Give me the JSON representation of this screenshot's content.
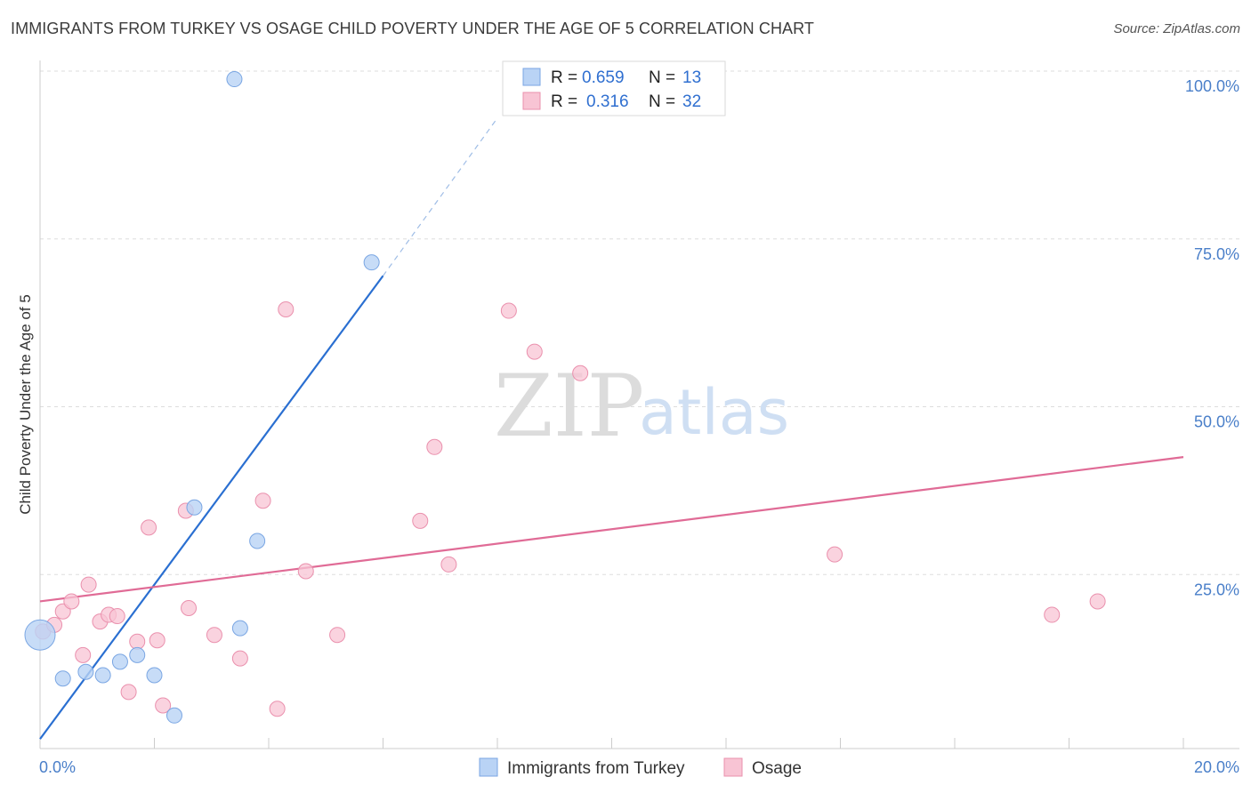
{
  "title": "IMMIGRANTS FROM TURKEY VS OSAGE CHILD POVERTY UNDER THE AGE OF 5 CORRELATION CHART",
  "source": "Source: ZipAtlas.com",
  "watermark": {
    "zip": "ZIP",
    "atlas": "atlas"
  },
  "colors": {
    "turkey_fill": "#b9d3f5",
    "turkey_stroke": "#7aa6e3",
    "turkey_line": "#2a6fd1",
    "osage_fill": "#f8c4d4",
    "osage_stroke": "#ea90ad",
    "osage_line": "#e06b96",
    "grid": "#dddddd",
    "tick_label": "#4a7fc9"
  },
  "legend": {
    "rows": [
      {
        "r_label": "R =",
        "r_value": "0.659",
        "n_label": "N =",
        "n_value": "13"
      },
      {
        "r_label": "R =",
        "r_value": "0.316",
        "n_label": "N =",
        "n_value": "32"
      }
    ]
  },
  "chart_data": {
    "type": "scatter",
    "title": "IMMIGRANTS FROM TURKEY VS OSAGE CHILD POVERTY UNDER THE AGE OF 5 CORRELATION CHART",
    "xlabel": "",
    "ylabel": "Child Poverty Under the Age of 5",
    "xlim": [
      0,
      20
    ],
    "ylim": [
      0,
      100
    ],
    "x_tick_labels": [
      "0.0%",
      "20.0%"
    ],
    "y_ticks": [
      25,
      50,
      75,
      100
    ],
    "y_tick_labels": [
      "25.0%",
      "50.0%",
      "75.0%",
      "100.0%"
    ],
    "grid": true,
    "legend_position": "top-center",
    "series": [
      {
        "name": "Immigrants from Turkey",
        "r": 0.659,
        "n": 13,
        "points": [
          {
            "x": 0.0,
            "y": 16.0,
            "size": "large"
          },
          {
            "x": 0.4,
            "y": 9.5
          },
          {
            "x": 0.8,
            "y": 10.5
          },
          {
            "x": 1.1,
            "y": 10.0
          },
          {
            "x": 1.4,
            "y": 12.0
          },
          {
            "x": 1.7,
            "y": 13.0
          },
          {
            "x": 2.0,
            "y": 10.0
          },
          {
            "x": 2.35,
            "y": 4.0
          },
          {
            "x": 2.7,
            "y": 35.0
          },
          {
            "x": 3.4,
            "y": 98.8
          },
          {
            "x": 3.5,
            "y": 17.0
          },
          {
            "x": 3.8,
            "y": 30.0
          },
          {
            "x": 5.8,
            "y": 71.5
          }
        ],
        "trend": {
          "x0": 0.0,
          "y0": 0.5,
          "x1": 6.0,
          "y1": 69.5,
          "dashed_to_x": 8.0,
          "dashed_to_y": 93.0
        }
      },
      {
        "name": "Osage",
        "r": 0.316,
        "n": 32,
        "points": [
          {
            "x": 0.05,
            "y": 16.5
          },
          {
            "x": 0.25,
            "y": 17.5
          },
          {
            "x": 0.4,
            "y": 19.5
          },
          {
            "x": 0.55,
            "y": 21.0
          },
          {
            "x": 0.75,
            "y": 13.0
          },
          {
            "x": 0.85,
            "y": 23.5
          },
          {
            "x": 1.05,
            "y": 18.0
          },
          {
            "x": 1.2,
            "y": 19.0
          },
          {
            "x": 1.35,
            "y": 18.8
          },
          {
            "x": 1.55,
            "y": 7.5
          },
          {
            "x": 1.7,
            "y": 15.0
          },
          {
            "x": 1.9,
            "y": 32.0
          },
          {
            "x": 2.05,
            "y": 15.2
          },
          {
            "x": 2.15,
            "y": 5.5
          },
          {
            "x": 2.55,
            "y": 34.5
          },
          {
            "x": 2.6,
            "y": 20.0
          },
          {
            "x": 3.05,
            "y": 16.0
          },
          {
            "x": 3.5,
            "y": 12.5
          },
          {
            "x": 3.9,
            "y": 36.0
          },
          {
            "x": 4.15,
            "y": 5.0
          },
          {
            "x": 4.3,
            "y": 64.5
          },
          {
            "x": 4.65,
            "y": 25.5
          },
          {
            "x": 5.2,
            "y": 16.0
          },
          {
            "x": 6.65,
            "y": 33.0
          },
          {
            "x": 6.9,
            "y": 44.0
          },
          {
            "x": 7.15,
            "y": 26.5
          },
          {
            "x": 8.2,
            "y": 64.3
          },
          {
            "x": 8.65,
            "y": 58.2
          },
          {
            "x": 9.45,
            "y": 55.0
          },
          {
            "x": 13.9,
            "y": 28.0
          },
          {
            "x": 17.7,
            "y": 19.0
          },
          {
            "x": 18.5,
            "y": 21.0
          }
        ],
        "trend": {
          "x0": 0.0,
          "y0": 21.0,
          "x1": 20.0,
          "y1": 42.5
        }
      }
    ]
  }
}
